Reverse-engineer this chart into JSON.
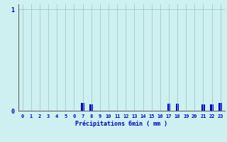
{
  "title": "",
  "xlabel": "Précipitations 6min ( mm )",
  "ylabel": "",
  "background_color": "#cff0f0",
  "bar_color": "#0000cc",
  "grid_color": "#99cccc",
  "axis_color": "#666666",
  "text_color": "#0000cc",
  "xlim": [
    -0.5,
    23.5
  ],
  "ylim": [
    0,
    1.05
  ],
  "yticks": [
    0,
    1
  ],
  "xtick_labels": [
    "0",
    "1",
    "2",
    "3",
    "4",
    "5",
    "6",
    "7",
    "8",
    "9",
    "10",
    "11",
    "12",
    "13",
    "14",
    "15",
    "16",
    "17",
    "18",
    "19",
    "20",
    "21",
    "22",
    "23"
  ],
  "values": [
    0,
    0,
    0,
    0,
    0,
    0,
    0,
    0.08,
    0.06,
    0,
    0,
    0,
    0,
    0,
    0,
    0,
    0,
    0.07,
    0.07,
    0,
    0,
    0.06,
    0.06,
    0.08
  ],
  "bar_width": 0.4,
  "figsize": [
    3.2,
    2.0
  ],
  "dpi": 100
}
